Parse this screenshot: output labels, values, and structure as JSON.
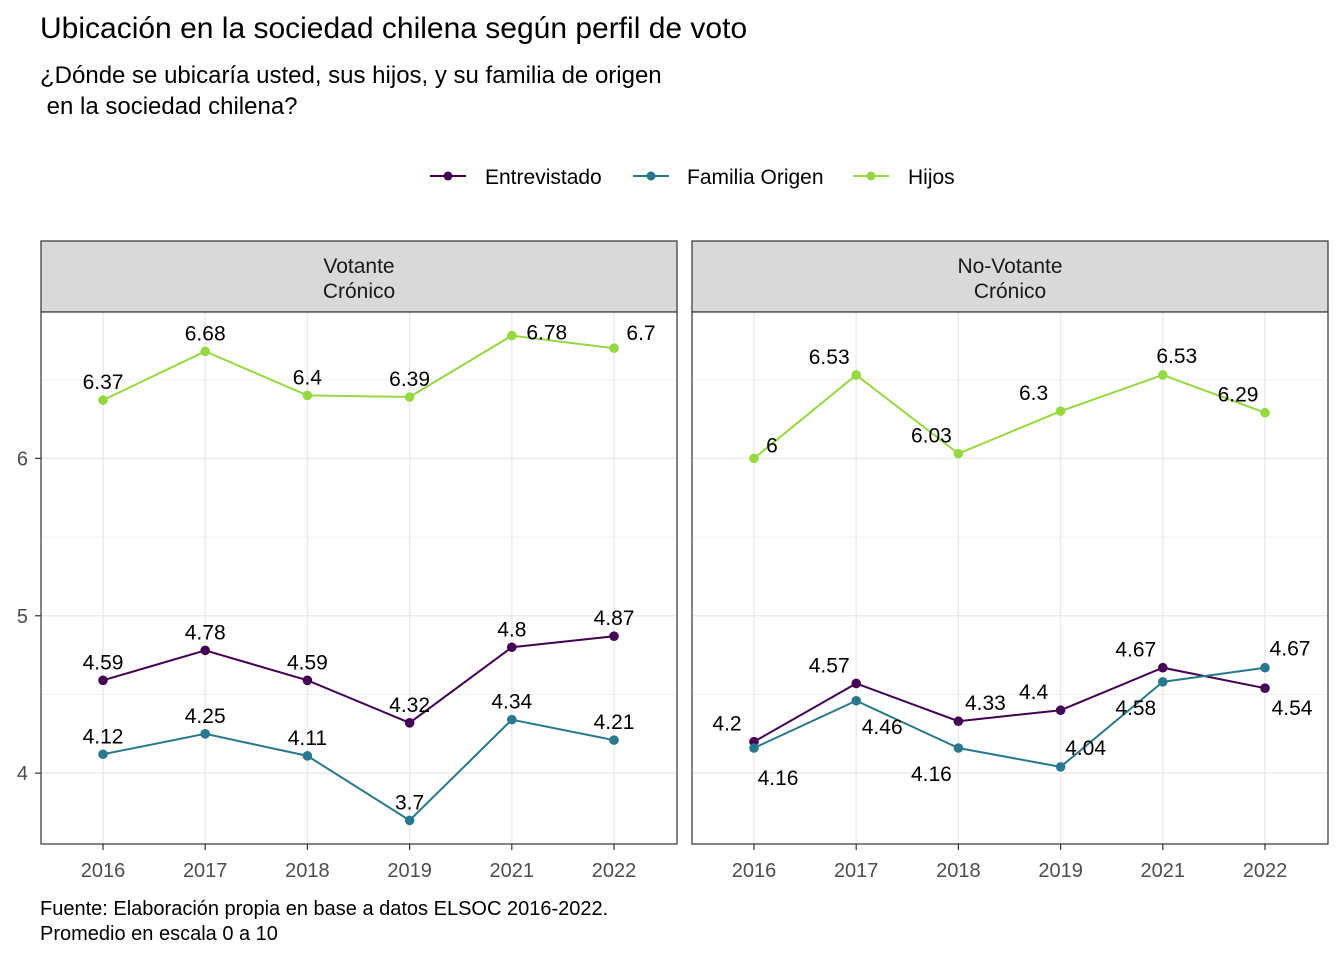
{
  "title": "Ubicación en la sociedad chilena según perfil de voto",
  "subtitle": "¿Dónde se ubicaría usted, sus hijos, y su familia de origen\n en la sociedad chilena?",
  "caption": [
    "Fuente: Elaboración propia en base a datos ELSOC 2016-2022.",
    "Promedio en escala 0 a 10"
  ],
  "chart_data": {
    "type": "line",
    "x": [
      "2016",
      "2017",
      "2018",
      "2019",
      "2021",
      "2022"
    ],
    "ylim": [
      3.55,
      6.93
    ],
    "yticks": [
      4,
      5,
      6
    ],
    "grid": true,
    "legend_position": "top",
    "series_colors": [
      "#440154",
      "#2a788e",
      "#95d840"
    ],
    "legend": [
      "Entrevistado",
      "Familia Origen",
      "Hijos"
    ],
    "panels": [
      {
        "strip": [
          "Votante",
          "Crónico"
        ],
        "series": [
          {
            "name": "Entrevistado",
            "values": [
              4.59,
              4.78,
              4.59,
              4.32,
              4.8,
              4.87
            ],
            "labels": [
              "4.59",
              "4.78",
              "4.59",
              "4.32",
              "4.8",
              "4.87"
            ]
          },
          {
            "name": "Familia Origen",
            "values": [
              4.12,
              4.25,
              4.11,
              3.7,
              4.34,
              4.21
            ],
            "labels": [
              "4.12",
              "4.25",
              "4.11",
              "3.7",
              "4.34",
              "4.21"
            ]
          },
          {
            "name": "Hijos",
            "values": [
              6.37,
              6.68,
              6.4,
              6.39,
              6.78,
              6.7
            ],
            "labels": [
              "6.37",
              "6.68",
              "6.4",
              "6.39",
              "6.78",
              "6.7"
            ]
          }
        ]
      },
      {
        "strip": [
          "No-Votante",
          "Crónico"
        ],
        "series": [
          {
            "name": "Entrevistado",
            "values": [
              4.2,
              4.57,
              4.33,
              4.4,
              4.67,
              4.54
            ],
            "labels": [
              "4.2",
              "4.57",
              "4.33",
              "4.4",
              "4.67",
              "4.54"
            ]
          },
          {
            "name": "Familia Origen",
            "values": [
              4.16,
              4.46,
              4.16,
              4.04,
              4.58,
              4.67
            ],
            "labels": [
              "4.16",
              "4.46",
              "4.16",
              "4.04",
              "4.58",
              "4.67"
            ]
          },
          {
            "name": "Hijos",
            "values": [
              6.0,
              6.53,
              6.03,
              6.3,
              6.53,
              6.29
            ],
            "labels": [
              "6",
              "6.53",
              "6.03",
              "6.3",
              "6.53",
              "6.29"
            ]
          }
        ]
      }
    ]
  }
}
